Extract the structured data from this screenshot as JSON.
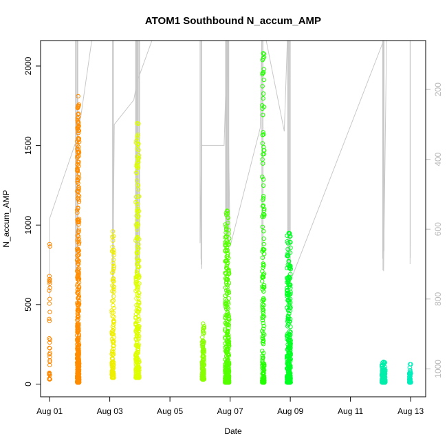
{
  "chart_data": {
    "type": "scatter",
    "title": "ATOM1 Southbound N_accum_AMP",
    "xlabel": "Date",
    "ylabel": "N_accum_AMP",
    "x_ticks": [
      "Aug 01",
      "Aug 03",
      "Aug 05",
      "Aug 07",
      "Aug 09",
      "Aug 11",
      "Aug 13"
    ],
    "x_range_days": [
      0.7,
      13.5
    ],
    "y_ticks": [
      0,
      500,
      1000,
      1500,
      2000
    ],
    "ylim": [
      -80,
      2160
    ],
    "y2_ticks": [
      200,
      400,
      600,
      800,
      1000
    ],
    "y2_note": "secondary axis inverted (200 at top, 1000 at bottom), drawn in grey",
    "y2_range": [
      1080,
      60
    ],
    "grid": false,
    "colors": {
      "line": "#c8c8c8",
      "axis": "#000000",
      "right_axis": "#b8b8b8"
    },
    "clusters": [
      {
        "day": 1.0,
        "y_min": 30,
        "y_max": 880,
        "count": 35,
        "width": 0.03,
        "color": "#ff8800"
      },
      {
        "day": 1.95,
        "y_min": 10,
        "y_max": 1810,
        "count": 400,
        "width": 0.07,
        "color": "#ff8c00"
      },
      {
        "day": 3.1,
        "y_min": 40,
        "y_max": 960,
        "count": 120,
        "width": 0.07,
        "color": "#eeee00"
      },
      {
        "day": 3.92,
        "y_min": 40,
        "y_max": 1640,
        "count": 280,
        "width": 0.12,
        "color": "#ddff00"
      },
      {
        "day": 6.1,
        "y_min": 30,
        "y_max": 380,
        "count": 140,
        "width": 0.07,
        "color": "#88ff00"
      },
      {
        "day": 6.9,
        "y_min": 10,
        "y_max": 1090,
        "count": 320,
        "width": 0.14,
        "color": "#55ff00"
      },
      {
        "day": 8.1,
        "y_min": 10,
        "y_max": 2080,
        "count": 170,
        "width": 0.07,
        "color": "#22ff00"
      },
      {
        "day": 8.95,
        "y_min": 10,
        "y_max": 950,
        "count": 280,
        "width": 0.13,
        "color": "#00ff22"
      },
      {
        "day": 12.1,
        "y_min": 10,
        "y_max": 140,
        "count": 130,
        "width": 0.12,
        "color": "#00eeaa"
      },
      {
        "day": 12.98,
        "y_min": 10,
        "y_max": 125,
        "count": 50,
        "width": 0.06,
        "color": "#00eebb"
      }
    ],
    "line_series": {
      "name": "",
      "axis": "right",
      "points": [
        [
          1.0,
          795
        ],
        [
          1.0,
          570
        ],
        [
          1.95,
          330
        ],
        [
          2.4,
          60
        ],
        [
          3.1,
          60
        ],
        [
          3.1,
          795
        ],
        [
          3.15,
          300
        ],
        [
          3.8,
          230
        ],
        [
          3.9,
          180
        ],
        [
          4.4,
          60
        ],
        [
          6.0,
          60
        ],
        [
          6.0,
          640
        ],
        [
          6.05,
          360
        ],
        [
          6.8,
          360
        ],
        [
          6.9,
          60
        ],
        [
          7.0,
          650
        ],
        [
          8.0,
          310
        ],
        [
          8.05,
          60
        ],
        [
          8.2,
          60
        ],
        [
          8.8,
          320
        ],
        [
          8.9,
          60
        ],
        [
          9.0,
          60
        ],
        [
          9.0,
          750
        ],
        [
          12.1,
          60
        ],
        [
          12.1,
          720
        ],
        [
          12.2,
          60
        ],
        [
          12.98,
          60
        ],
        [
          12.98,
          700
        ]
      ],
      "spikes": [
        {
          "day": 1.9,
          "bottom": 720,
          "count": 10,
          "width": 0.08
        },
        {
          "day": 3.1,
          "bottom": 790,
          "count": 5,
          "width": 0.04
        },
        {
          "day": 3.92,
          "bottom": 740,
          "count": 18,
          "width": 0.14
        },
        {
          "day": 6.05,
          "bottom": 720,
          "count": 4,
          "width": 0.05
        },
        {
          "day": 6.9,
          "bottom": 650,
          "count": 12,
          "width": 0.14
        },
        {
          "day": 8.08,
          "bottom": 700,
          "count": 4,
          "width": 0.05
        },
        {
          "day": 8.95,
          "bottom": 710,
          "count": 8,
          "width": 0.09
        },
        {
          "day": 12.1,
          "bottom": 720,
          "count": 4,
          "width": 0.06
        },
        {
          "day": 12.98,
          "bottom": 700,
          "count": 2,
          "width": 0.02
        }
      ]
    }
  }
}
